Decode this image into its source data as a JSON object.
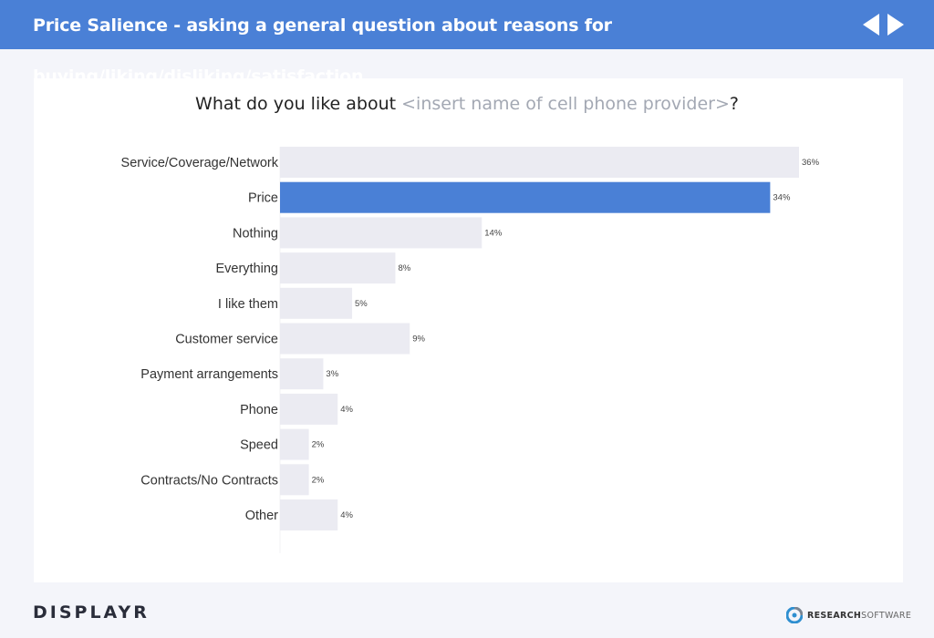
{
  "header": {
    "title": "Price Salience - asking a general question about reasons for buying/liking/disliking/satisfaction",
    "background": "#4a80d6"
  },
  "question": {
    "prefix": "What do you like about ",
    "placeholder": "<insert name of cell phone provider>",
    "suffix": "?"
  },
  "footer": {
    "brand": "DISPLAYR",
    "partner_bold": "RESEARCH",
    "partner_light": "SOFTWARE"
  },
  "colors": {
    "highlight": "#4a80d6",
    "bar": "#ebebf2"
  },
  "chart_data": {
    "type": "bar",
    "orientation": "horizontal",
    "title": "",
    "xlabel": "",
    "ylabel": "",
    "xlim": [
      0,
      36
    ],
    "grid": false,
    "categories": [
      "Service/Coverage/Network",
      "Price",
      "Nothing",
      "Everything",
      "I like them",
      "Customer service",
      "Payment arrangements",
      "Phone",
      "Speed",
      "Contracts/No Contracts",
      "Other"
    ],
    "values": [
      36,
      34,
      14,
      8,
      5,
      9,
      3,
      4,
      2,
      2,
      4
    ],
    "value_labels": [
      "36%",
      "34%",
      "14%",
      "8%",
      "5%",
      "9%",
      "3%",
      "4%",
      "2%",
      "2%",
      "4%"
    ],
    "highlighted": [
      "Price"
    ]
  }
}
